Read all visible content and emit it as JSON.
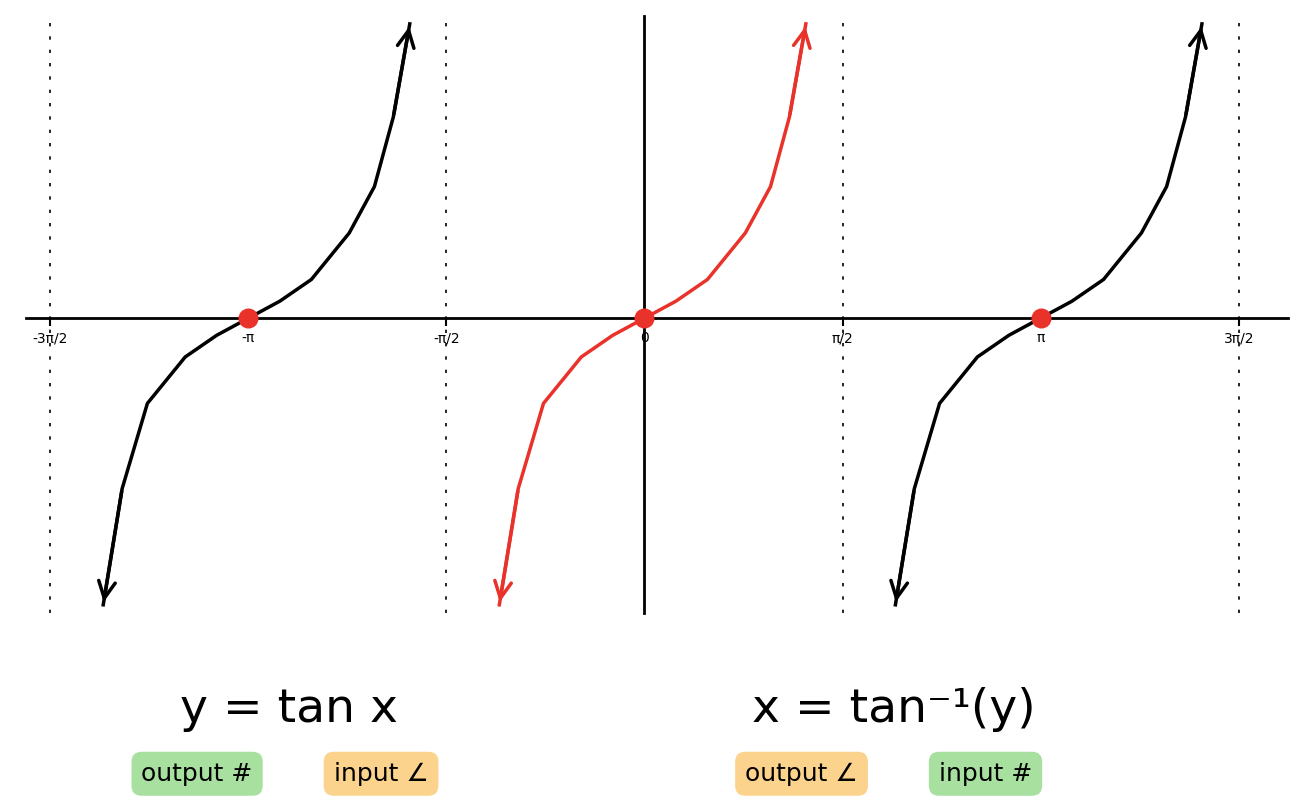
{
  "chart_data": {
    "type": "line",
    "xlim": [
      -4.9,
      5.1
    ],
    "ylim": [
      -3.8,
      3.9
    ],
    "xticks": [
      {
        "value": -4.712,
        "label": "-3π/2"
      },
      {
        "value": -3.1416,
        "label": "-π"
      },
      {
        "value": -1.5708,
        "label": "-π/2"
      },
      0,
      {
        "value": 1.5708,
        "label": "π/2"
      },
      {
        "value": 3.1416,
        "label": "π"
      },
      {
        "value": 4.712,
        "label": "3π/2"
      }
    ],
    "tick_labels": "x",
    "asymptotes": [
      -4.712,
      -1.5708,
      1.5708,
      4.712
    ],
    "series": [
      {
        "color": "#000000",
        "x": [
          -4.29,
          -4.14,
          -3.94,
          -3.64,
          -3.39,
          -3.14,
          -2.89,
          -2.64,
          -2.34,
          -2.14,
          -1.99,
          -1.86
        ],
        "values": [
          -3.7,
          -2.2,
          -1.1,
          -0.5,
          -0.22,
          0,
          0.22,
          0.5,
          1.1,
          1.7,
          2.6,
          3.8
        ]
      },
      {
        "color": "#e8322a",
        "x": [
          -1.15,
          -1.0,
          -0.8,
          -0.5,
          -0.25,
          0,
          0.25,
          0.5,
          0.8,
          1.0,
          1.15,
          1.28
        ],
        "values": [
          -3.7,
          -2.2,
          -1.1,
          -0.5,
          -0.22,
          0,
          0.22,
          0.5,
          1.1,
          1.7,
          2.6,
          3.8
        ]
      },
      {
        "color": "#000000",
        "x": [
          1.99,
          2.14,
          2.34,
          2.64,
          2.89,
          3.14,
          3.39,
          3.64,
          3.94,
          4.14,
          4.29,
          4.42
        ],
        "values": [
          -3.7,
          -2.2,
          -1.1,
          -0.5,
          -0.22,
          0,
          0.22,
          0.5,
          1.1,
          1.7,
          2.6,
          3.8
        ]
      }
    ],
    "zeros": {
      "color": "#e8322a",
      "x": [
        -3.1416,
        0,
        3.1416
      ],
      "values": [
        0,
        0,
        0
      ]
    },
    "equations": [
      {
        "text": "y = tan x",
        "labels": [
          {
            "text": "output #",
            "color": "#a8e0a0"
          },
          {
            "text": "input ∠",
            "color": "#fbd38d"
          }
        ]
      },
      {
        "text": "x = tan⁻¹(y)",
        "labels": [
          {
            "text": "output ∠",
            "color": "#fbd38d"
          },
          {
            "text": "input #",
            "color": "#a8e0a0"
          }
        ]
      }
    ]
  }
}
